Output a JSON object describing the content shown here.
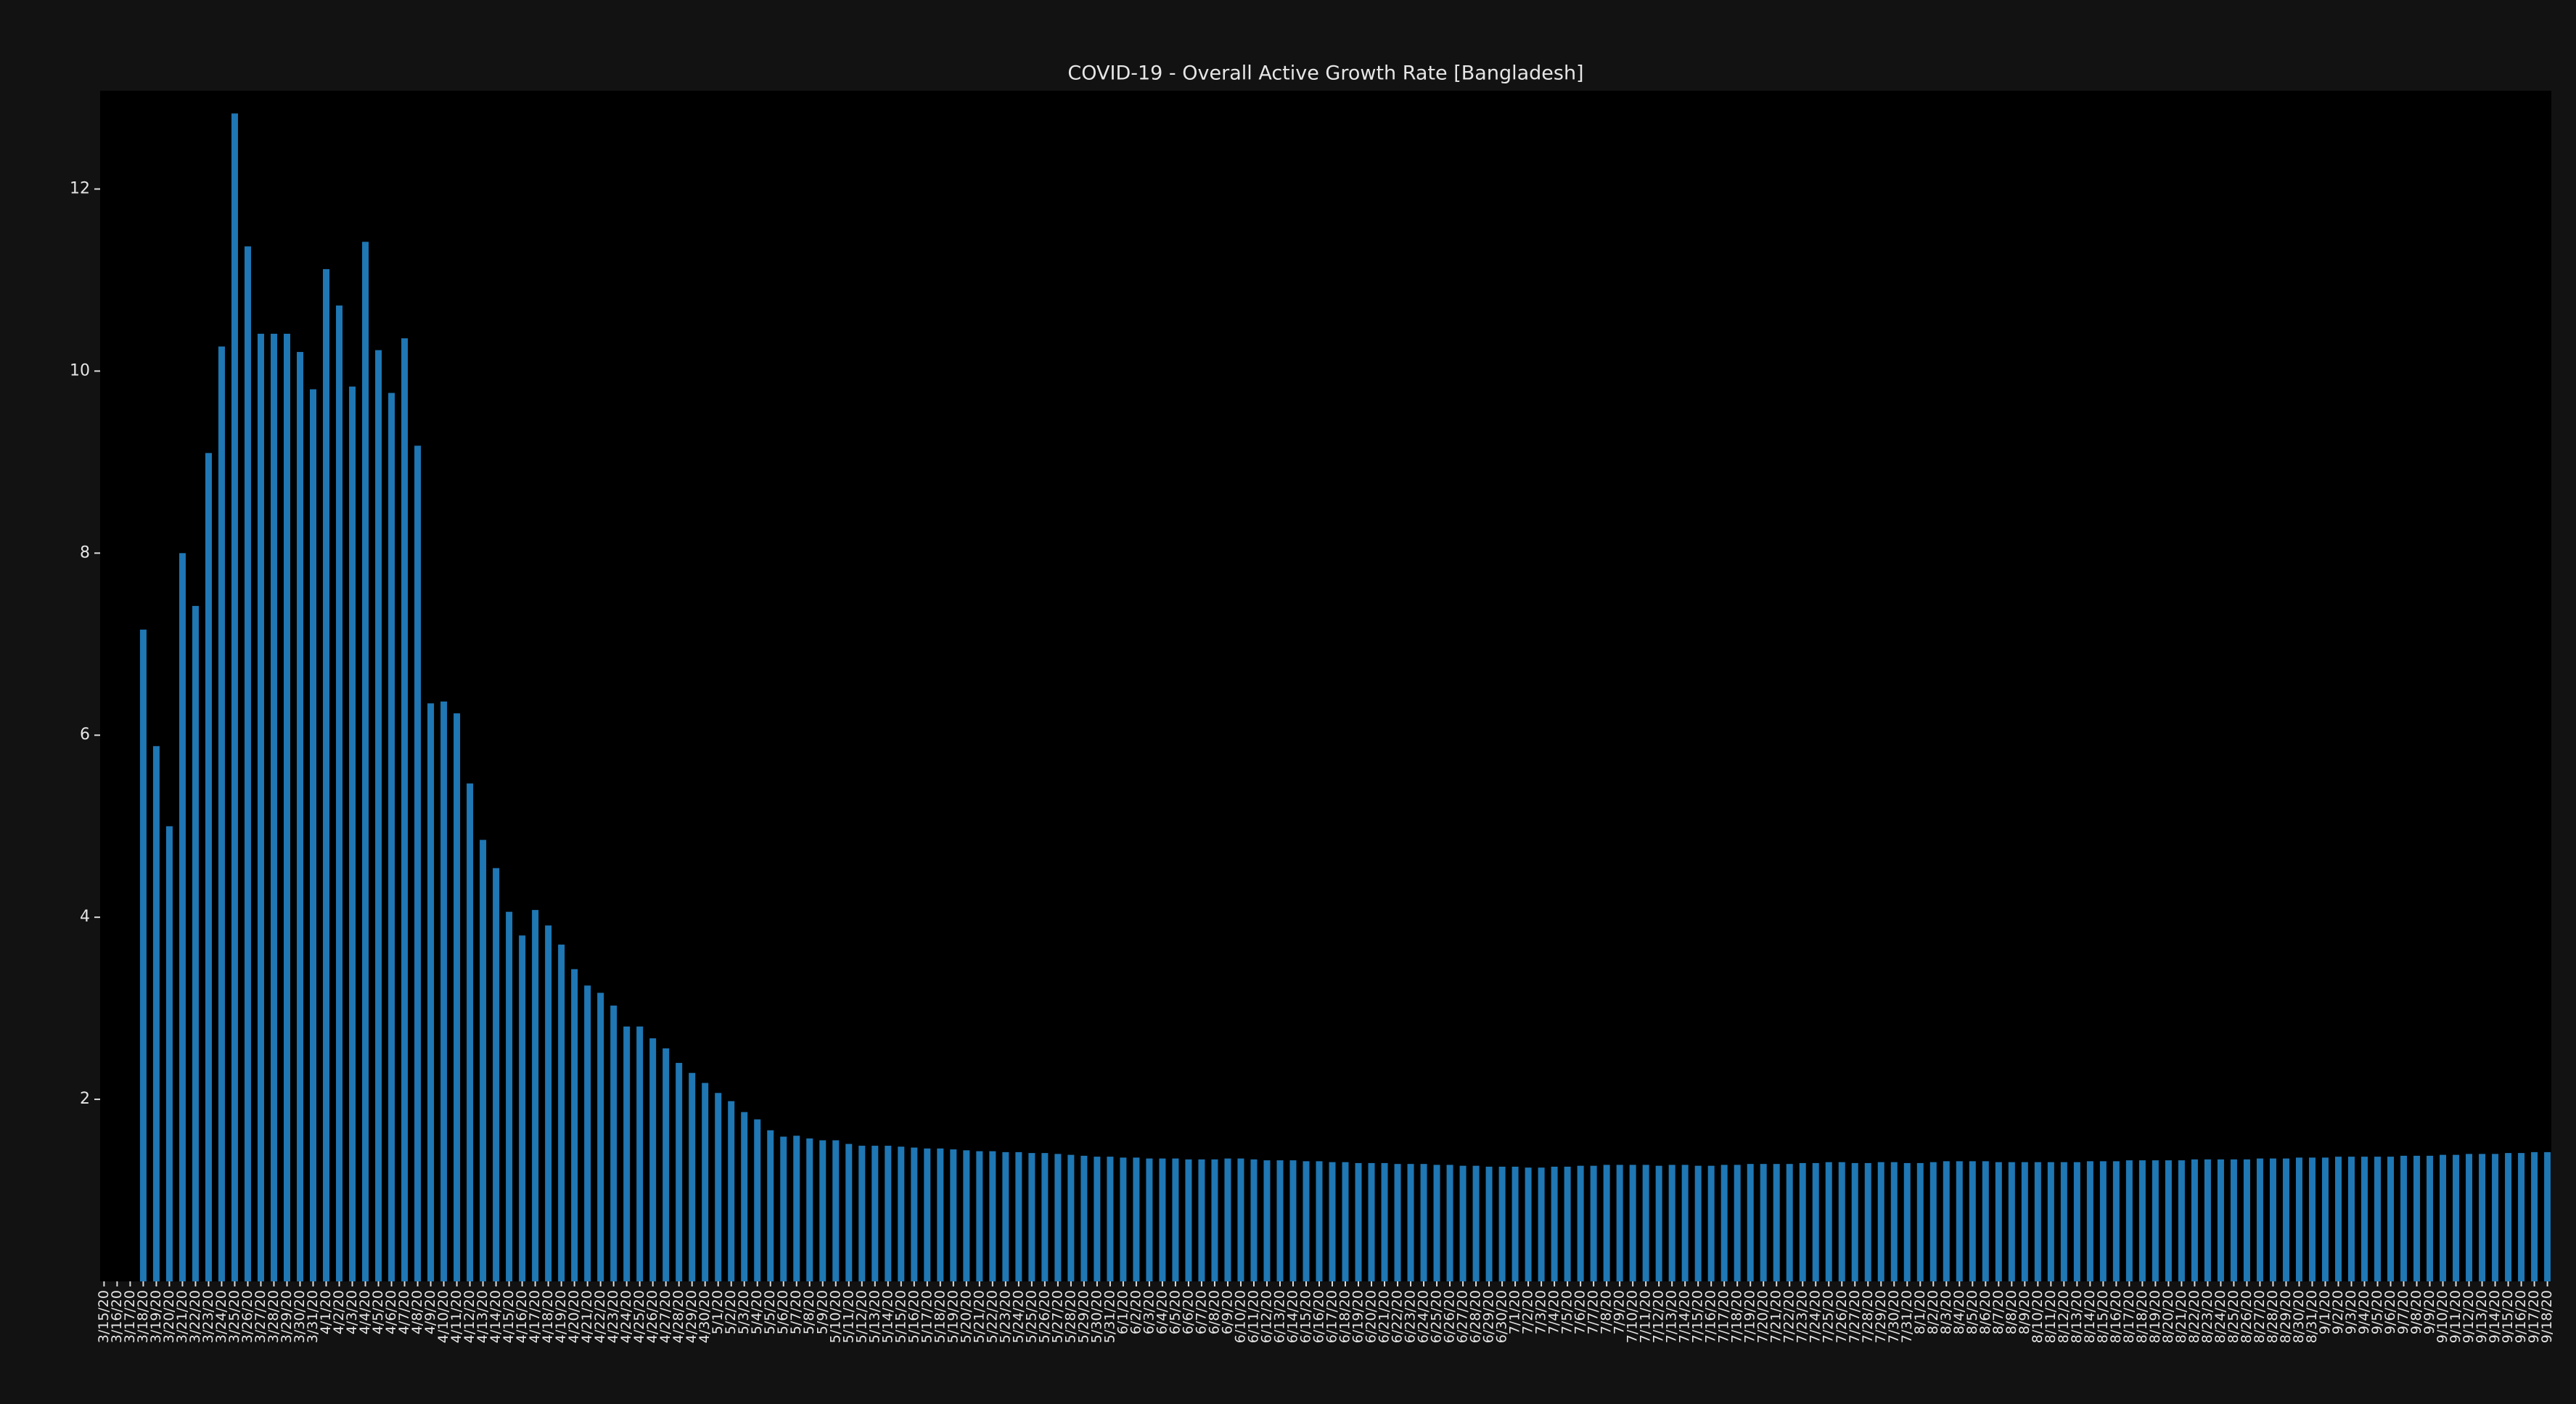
{
  "chart_data": {
    "type": "bar",
    "title": "COVID-19 - Overall Active Growth Rate [Bangladesh]",
    "categories": [
      "3/15/20",
      "3/16/20",
      "3/17/20",
      "3/18/20",
      "3/19/20",
      "3/20/20",
      "3/21/20",
      "3/22/20",
      "3/23/20",
      "3/24/20",
      "3/25/20",
      "3/26/20",
      "3/27/20",
      "3/28/20",
      "3/29/20",
      "3/30/20",
      "3/31/20",
      "4/1/20",
      "4/2/20",
      "4/3/20",
      "4/4/20",
      "4/5/20",
      "4/6/20",
      "4/7/20",
      "4/8/20",
      "4/9/20",
      "4/10/20",
      "4/11/20",
      "4/12/20",
      "4/13/20",
      "4/14/20",
      "4/15/20",
      "4/16/20",
      "4/17/20",
      "4/18/20",
      "4/19/20",
      "4/20/20",
      "4/21/20",
      "4/22/20",
      "4/23/20",
      "4/24/20",
      "4/25/20",
      "4/26/20",
      "4/27/20",
      "4/28/20",
      "4/29/20",
      "4/30/20",
      "5/1/20",
      "5/2/20",
      "5/3/20",
      "5/4/20",
      "5/5/20",
      "5/6/20",
      "5/7/20",
      "5/8/20",
      "5/9/20",
      "5/10/20",
      "5/11/20",
      "5/12/20",
      "5/13/20",
      "5/14/20",
      "5/15/20",
      "5/16/20",
      "5/17/20",
      "5/18/20",
      "5/19/20",
      "5/20/20",
      "5/21/20",
      "5/22/20",
      "5/23/20",
      "5/24/20",
      "5/25/20",
      "5/26/20",
      "5/27/20",
      "5/28/20",
      "5/29/20",
      "5/30/20",
      "5/31/20",
      "6/1/20",
      "6/2/20",
      "6/3/20",
      "6/4/20",
      "6/5/20",
      "6/6/20",
      "6/7/20",
      "6/8/20",
      "6/9/20",
      "6/10/20",
      "6/11/20",
      "6/12/20",
      "6/13/20",
      "6/14/20",
      "6/15/20",
      "6/16/20",
      "6/17/20",
      "6/18/20",
      "6/19/20",
      "6/20/20",
      "6/21/20",
      "6/22/20",
      "6/23/20",
      "6/24/20",
      "6/25/20",
      "6/26/20",
      "6/27/20",
      "6/28/20",
      "6/29/20",
      "6/30/20",
      "7/1/20",
      "7/2/20",
      "7/3/20",
      "7/4/20",
      "7/5/20",
      "7/6/20",
      "7/7/20",
      "7/8/20",
      "7/9/20",
      "7/10/20",
      "7/11/20",
      "7/12/20",
      "7/13/20",
      "7/14/20",
      "7/15/20",
      "7/16/20",
      "7/17/20",
      "7/18/20",
      "7/19/20",
      "7/20/20",
      "7/21/20",
      "7/22/20",
      "7/23/20",
      "7/24/20",
      "7/25/20",
      "7/26/20",
      "7/27/20",
      "7/28/20",
      "7/29/20",
      "7/30/20",
      "7/31/20",
      "8/1/20",
      "8/2/20",
      "8/3/20",
      "8/4/20",
      "8/5/20",
      "8/6/20",
      "8/7/20",
      "8/8/20",
      "8/9/20",
      "8/10/20",
      "8/11/20",
      "8/12/20",
      "8/13/20",
      "8/14/20",
      "8/15/20",
      "8/16/20",
      "8/17/20",
      "8/18/20",
      "8/19/20",
      "8/20/20",
      "8/21/20",
      "8/22/20",
      "8/23/20",
      "8/24/20",
      "8/25/20",
      "8/26/20",
      "8/27/20",
      "8/28/20",
      "8/29/20",
      "8/30/20",
      "8/31/20",
      "9/1/20",
      "9/2/20",
      "9/3/20",
      "9/4/20",
      "9/5/20",
      "9/6/20",
      "9/7/20",
      "9/8/20",
      "9/9/20",
      "9/10/20",
      "9/11/20",
      "9/12/20",
      "9/13/20",
      "9/14/20",
      "9/15/20",
      "9/16/20",
      "9/17/20",
      "9/18/20"
    ],
    "values": [
      0,
      0,
      0,
      7.16,
      5.88,
      5.0,
      8.0,
      7.42,
      9.1,
      10.27,
      12.83,
      11.37,
      10.41,
      10.41,
      10.41,
      10.21,
      9.8,
      11.12,
      10.72,
      9.83,
      11.42,
      10.23,
      9.76,
      10.36,
      9.18,
      6.35,
      6.37,
      6.24,
      5.47,
      4.85,
      4.54,
      4.06,
      3.8,
      4.08,
      3.91,
      3.7,
      3.43,
      3.25,
      3.17,
      3.03,
      2.8,
      2.8,
      2.67,
      2.56,
      2.4,
      2.29,
      2.18,
      2.07,
      1.98,
      1.86,
      1.78,
      1.66,
      1.59,
      1.6,
      1.57,
      1.55,
      1.55,
      1.51,
      1.49,
      1.49,
      1.49,
      1.48,
      1.47,
      1.46,
      1.46,
      1.45,
      1.44,
      1.43,
      1.43,
      1.42,
      1.42,
      1.41,
      1.41,
      1.4,
      1.39,
      1.38,
      1.37,
      1.37,
      1.36,
      1.36,
      1.35,
      1.35,
      1.35,
      1.34,
      1.34,
      1.34,
      1.35,
      1.35,
      1.34,
      1.33,
      1.33,
      1.33,
      1.32,
      1.32,
      1.31,
      1.31,
      1.3,
      1.3,
      1.3,
      1.29,
      1.29,
      1.29,
      1.28,
      1.28,
      1.27,
      1.27,
      1.26,
      1.26,
      1.26,
      1.25,
      1.25,
      1.26,
      1.26,
      1.27,
      1.27,
      1.28,
      1.28,
      1.28,
      1.28,
      1.27,
      1.28,
      1.28,
      1.27,
      1.27,
      1.28,
      1.28,
      1.29,
      1.29,
      1.29,
      1.29,
      1.3,
      1.3,
      1.31,
      1.31,
      1.3,
      1.3,
      1.31,
      1.31,
      1.3,
      1.3,
      1.31,
      1.32,
      1.32,
      1.32,
      1.32,
      1.31,
      1.31,
      1.31,
      1.31,
      1.31,
      1.31,
      1.31,
      1.32,
      1.32,
      1.32,
      1.33,
      1.33,
      1.33,
      1.33,
      1.33,
      1.34,
      1.34,
      1.34,
      1.34,
      1.34,
      1.35,
      1.35,
      1.35,
      1.36,
      1.36,
      1.36,
      1.37,
      1.37,
      1.37,
      1.37,
      1.37,
      1.38,
      1.38,
      1.38,
      1.39,
      1.39,
      1.4,
      1.4,
      1.4,
      1.41,
      1.41,
      1.42,
      1.42
    ],
    "color": "#1f77b4",
    "ylim": [
      0,
      13.08
    ],
    "yticks": [
      2,
      4,
      6,
      8,
      10,
      12
    ],
    "grid": false
  }
}
